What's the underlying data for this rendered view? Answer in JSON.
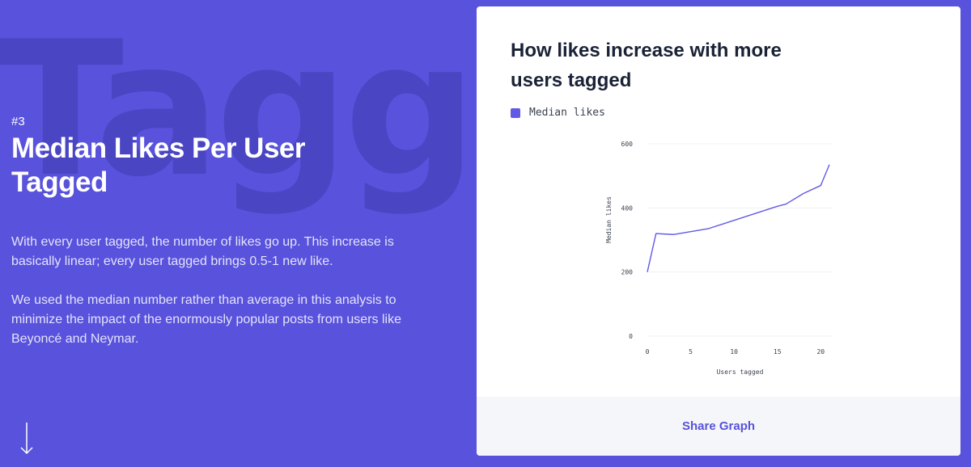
{
  "background_word": "Tagging",
  "section": {
    "number": "#3",
    "title": "Median Likes Per User Tagged",
    "paragraphs": [
      "With every user tagged, the number of likes go up. This increase is basically linear; every user tagged brings 0.5-1 new like.",
      "We used the median number rather than average in this analysis to minimize the impact of the enormously popular posts from users like Beyoncé and Neymar."
    ]
  },
  "card": {
    "title": "How likes increase with more users tagged",
    "share_label": "Share Graph"
  },
  "colors": {
    "background": "#5852dc",
    "series": "#615ae6",
    "footer": "#f5f6f9"
  },
  "icons": {
    "scroll": "arrow-down-icon"
  },
  "chart_data": {
    "type": "line",
    "title": "How likes increase with more users tagged",
    "xlabel": "Users tagged",
    "ylabel": "Median likes",
    "xlim": [
      0,
      20
    ],
    "ylim": [
      0,
      600
    ],
    "xticks": [
      0,
      5,
      10,
      15,
      20
    ],
    "yticks": [
      0,
      200,
      400,
      600
    ],
    "grid": true,
    "legend": "top-left",
    "series": [
      {
        "name": "Median likes",
        "x": [
          0,
          1,
          3,
          7,
          15,
          16,
          18,
          20,
          21
        ],
        "y": [
          200,
          320,
          317,
          335,
          405,
          412,
          445,
          470,
          535
        ]
      }
    ]
  }
}
